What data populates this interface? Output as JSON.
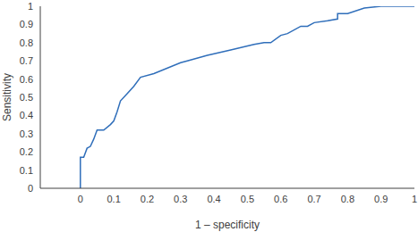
{
  "chart_data": {
    "type": "line",
    "x_label": "1 – specificity",
    "y_label": "Sensitivity",
    "x": [
      0,
      0,
      0.01,
      0.02,
      0.03,
      0.04,
      0.05,
      0.07,
      0.09,
      0.1,
      0.11,
      0.12,
      0.14,
      0.16,
      0.18,
      0.22,
      0.3,
      0.32,
      0.38,
      0.45,
      0.52,
      0.55,
      0.57,
      0.6,
      0.62,
      0.66,
      0.68,
      0.7,
      0.74,
      0.77,
      0.77,
      0.8,
      0.85,
      0.9,
      1
    ],
    "values": [
      0,
      0.17,
      0.17,
      0.22,
      0.23,
      0.27,
      0.32,
      0.32,
      0.35,
      0.37,
      0.42,
      0.48,
      0.52,
      0.56,
      0.61,
      0.63,
      0.69,
      0.7,
      0.73,
      0.76,
      0.79,
      0.8,
      0.8,
      0.84,
      0.85,
      0.89,
      0.89,
      0.91,
      0.92,
      0.93,
      0.96,
      0.96,
      0.99,
      1,
      1
    ],
    "color": "#2f6eba",
    "xlim": [
      -0.12,
      1
    ],
    "ylim": [
      0,
      1
    ],
    "xticks": [
      0,
      0.1,
      0.2,
      0.3,
      0.4,
      0.5,
      0.6,
      0.7,
      0.8,
      0.9,
      1
    ],
    "yticks": [
      0,
      0.1,
      0.2,
      0.3,
      0.4,
      0.5,
      0.6,
      0.7,
      0.8,
      0.9,
      1
    ],
    "grid": false
  }
}
